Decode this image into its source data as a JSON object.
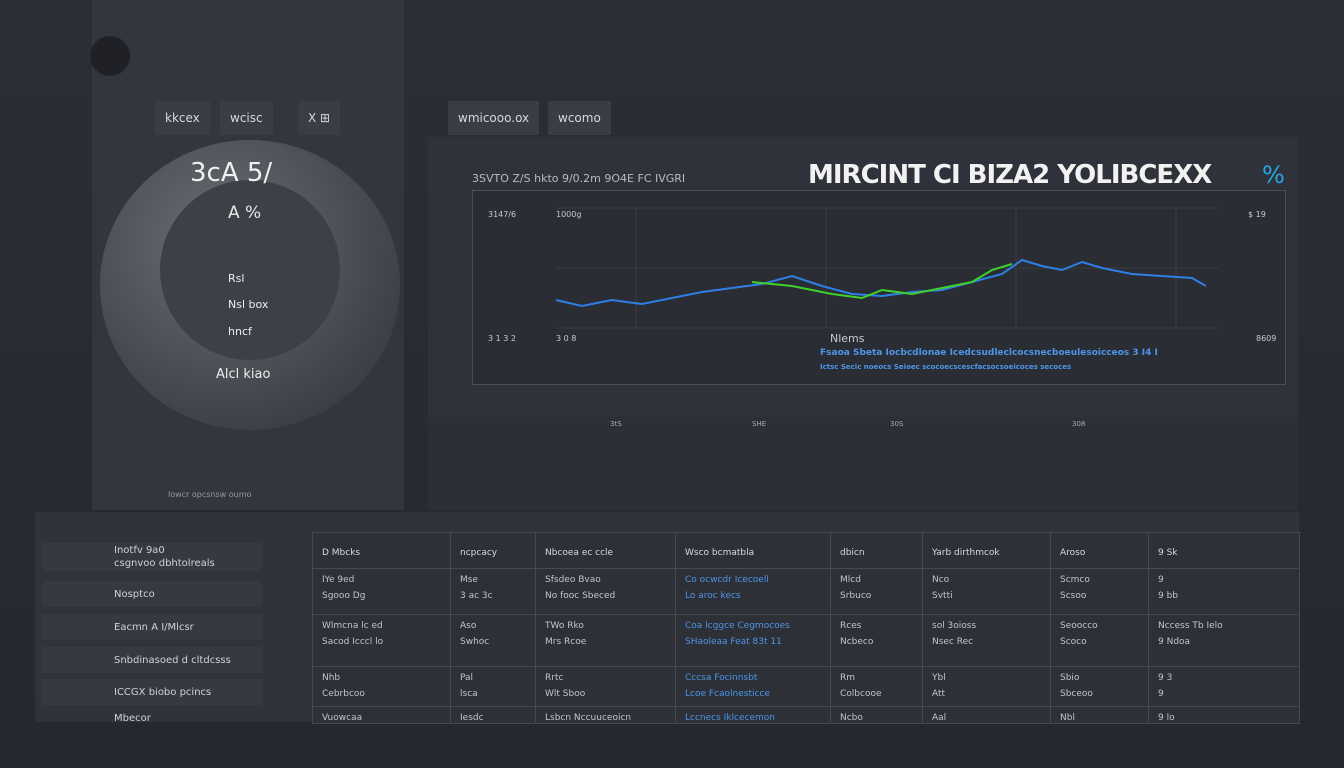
{
  "tabs": [
    "kkcex",
    "wcisc",
    "X  ⊞",
    "wmicooo.ox",
    "wcomo"
  ],
  "dial": {
    "value": "3cA 5/",
    "sub": "A %",
    "labels": [
      "Rsl",
      "Nsl box",
      "hncf",
      "Alcl kiao"
    ],
    "footer": "lowcr opcsnsw oumo"
  },
  "chart": {
    "title": "MIRCINT CI BIZA2 YOLIBCEXX",
    "title_unit": "%",
    "subtitle": "3SVTO  Z/S hkto 9/0.2m 9O4E FC IVGRI",
    "axis_labels": [
      "3147/6",
      "1000g",
      "3 1 3 2",
      "3 0 8",
      "Nlems",
      "8609",
      "$ 19"
    ],
    "legend_lines": [
      "Fsaoa Sbeta Iocbcdlonae Icedcsudleclcocsnecboeulesoicceos 3 I4 I",
      "Ictsc Secic  noeocs Seioec scocoecscescfacsocsoeicoces  secoces"
    ],
    "footer": [
      "3tS",
      "SHE",
      "30S",
      "308"
    ]
  },
  "sidebar": [
    "Inotfv 9a0\ncsgnvoo dbhtolreals",
    "Nosptco",
    "Eacmn A I/Mlcsr",
    "Snbdinasoed d cltdcsss",
    "ICCGX  biobo pcincs",
    "Mbecor"
  ],
  "table": {
    "headers": [
      "D  Mbcks",
      "ncpcacy",
      "Nbcoea ec ccle",
      "Wsco bcmatbla",
      "dbicn",
      "Yarb dirthmcok",
      "Aroso",
      "9 Sk"
    ],
    "rows": [
      [
        "IYe  9ed\nSgooo  Dg",
        "Mse\n3 ac 3c",
        "Sfsdeo Bvao\nNo fooc Sbeced",
        "Co ocwcdr Icecoell\nLo aroc kecs",
        "Mlcd\nSrbuco",
        "Nco\nSvtti",
        "Scmco\nScsoo",
        "9\n9 bb"
      ],
      [
        "Wlmcna lc ed\nSacod Icccl lo",
        "Aso\nSwhoc",
        "TWo Rko\nMrs Rcoe",
        "Coa lcggce Cegmocoes\nSHaoleaa Feat 83t 11",
        "Rces\nNcbeco",
        "sol 3oioss\nNsec Rec",
        "Seoocco\nScoco",
        "Nccess  Tb  Ielo\n9  Ndoa"
      ],
      [
        "Nhb\nCebrbcoo",
        "Pal\nlsca",
        "Rrtc\nWlt Sboo",
        "Cccsa Focinnsbt\nLcoe Fcaolnesticce",
        "Rm\nColbcooe",
        "Ybl\nAtt",
        "Sbio\nSbceoo",
        "9 3\n9"
      ],
      [
        "Vuowcaa",
        "Iesdc",
        "Lsbcn Nccuuceoicn",
        "Lccnecs Iklcecemon",
        "Ncbo",
        "Aal",
        "Nbl",
        "9 lo"
      ]
    ]
  }
}
